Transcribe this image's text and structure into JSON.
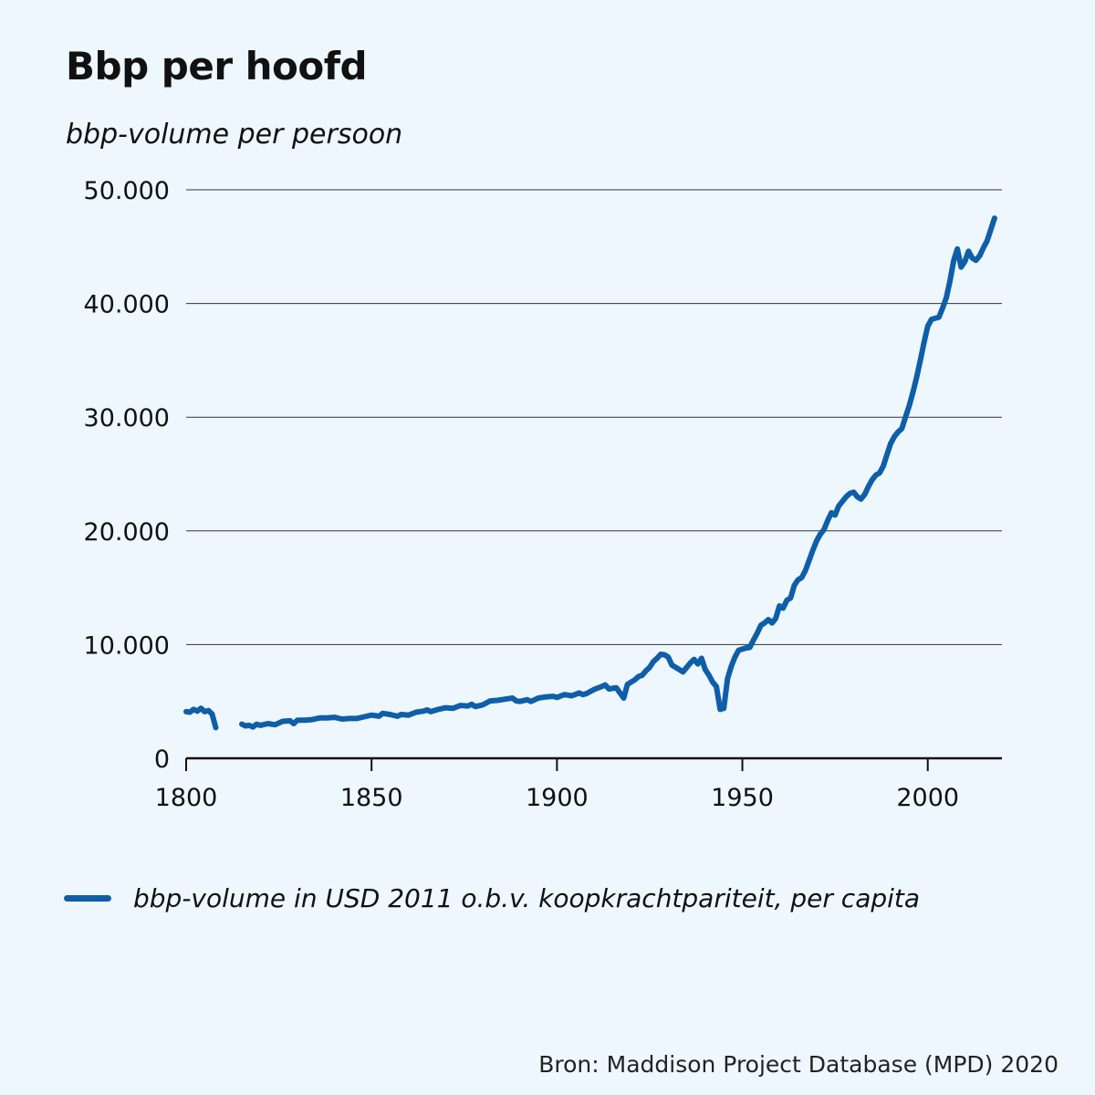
{
  "chart_data": {
    "type": "line",
    "title": "Bbp per hoofd",
    "ylabel": "bbp-volume per persoon",
    "xlim": [
      1800,
      2020
    ],
    "ylim": [
      0,
      50000
    ],
    "x_ticks": [
      1800,
      1850,
      1900,
      1950,
      2000
    ],
    "x_tick_labels": [
      "1800",
      "1850",
      "1900",
      "1950",
      "2000"
    ],
    "y_ticks": [
      0,
      10000,
      20000,
      30000,
      40000,
      50000
    ],
    "y_tick_labels": [
      "0",
      "10.000",
      "20.000",
      "30.000",
      "40.000",
      "50.000"
    ],
    "grid": "horizontal",
    "legend_position": "bottom",
    "source": "Bron: Maddison Project Database (MPD) 2020",
    "series": [
      {
        "name": "bbp-volume in USD 2011 o.b.v. koopkrachtpariteit, per capita",
        "color": "#0f5ea8",
        "segments": [
          [
            [
              1800,
              4100
            ],
            [
              1801,
              4050
            ],
            [
              1802,
              4300
            ],
            [
              1803,
              4150
            ],
            [
              1804,
              4400
            ],
            [
              1805,
              4100
            ],
            [
              1806,
              4200
            ],
            [
              1807,
              3900
            ],
            [
              1808,
              2700
            ]
          ],
          [
            [
              1815,
              3000
            ],
            [
              1816,
              2850
            ],
            [
              1817,
              2900
            ],
            [
              1818,
              2750
            ],
            [
              1819,
              3000
            ],
            [
              1820,
              2900
            ],
            [
              1822,
              3050
            ],
            [
              1824,
              2950
            ],
            [
              1826,
              3250
            ],
            [
              1828,
              3300
            ],
            [
              1829,
              3050
            ],
            [
              1830,
              3350
            ],
            [
              1832,
              3350
            ],
            [
              1834,
              3400
            ],
            [
              1836,
              3550
            ],
            [
              1838,
              3550
            ],
            [
              1840,
              3600
            ],
            [
              1842,
              3450
            ],
            [
              1844,
              3500
            ],
            [
              1846,
              3500
            ],
            [
              1848,
              3650
            ],
            [
              1850,
              3800
            ],
            [
              1852,
              3700
            ],
            [
              1853,
              3950
            ],
            [
              1855,
              3850
            ],
            [
              1857,
              3700
            ],
            [
              1858,
              3850
            ],
            [
              1860,
              3800
            ],
            [
              1862,
              4050
            ],
            [
              1864,
              4150
            ],
            [
              1865,
              4250
            ],
            [
              1866,
              4100
            ],
            [
              1868,
              4300
            ],
            [
              1870,
              4450
            ],
            [
              1872,
              4400
            ],
            [
              1874,
              4650
            ],
            [
              1876,
              4600
            ],
            [
              1877,
              4750
            ],
            [
              1878,
              4550
            ],
            [
              1880,
              4700
            ],
            [
              1882,
              5050
            ],
            [
              1884,
              5100
            ],
            [
              1886,
              5200
            ],
            [
              1888,
              5300
            ],
            [
              1889,
              5050
            ],
            [
              1890,
              5000
            ],
            [
              1892,
              5150
            ],
            [
              1893,
              5000
            ],
            [
              1895,
              5300
            ],
            [
              1897,
              5400
            ],
            [
              1899,
              5450
            ],
            [
              1900,
              5350
            ],
            [
              1902,
              5600
            ],
            [
              1904,
              5500
            ],
            [
              1906,
              5750
            ],
            [
              1907,
              5600
            ],
            [
              1908,
              5700
            ],
            [
              1910,
              6050
            ],
            [
              1912,
              6300
            ],
            [
              1913,
              6450
            ],
            [
              1914,
              6100
            ],
            [
              1916,
              6200
            ],
            [
              1918,
              5300
            ],
            [
              1919,
              6500
            ],
            [
              1920,
              6700
            ],
            [
              1921,
              6900
            ],
            [
              1922,
              7200
            ],
            [
              1923,
              7300
            ],
            [
              1924,
              7700
            ],
            [
              1925,
              8000
            ],
            [
              1926,
              8500
            ],
            [
              1927,
              8800
            ],
            [
              1928,
              9150
            ],
            [
              1929,
              9100
            ],
            [
              1930,
              8900
            ],
            [
              1931,
              8200
            ],
            [
              1932,
              8000
            ],
            [
              1933,
              7800
            ],
            [
              1934,
              7600
            ],
            [
              1935,
              8000
            ],
            [
              1936,
              8400
            ],
            [
              1937,
              8700
            ],
            [
              1938,
              8300
            ],
            [
              1939,
              8800
            ],
            [
              1940,
              7800
            ],
            [
              1941,
              7300
            ],
            [
              1942,
              6700
            ],
            [
              1943,
              6300
            ],
            [
              1944,
              4300
            ],
            [
              1945,
              4400
            ],
            [
              1946,
              7000
            ],
            [
              1947,
              8100
            ],
            [
              1948,
              8900
            ],
            [
              1949,
              9500
            ],
            [
              1950,
              9600
            ],
            [
              1951,
              9700
            ],
            [
              1952,
              9750
            ],
            [
              1953,
              10400
            ],
            [
              1954,
              11000
            ],
            [
              1955,
              11700
            ],
            [
              1956,
              11900
            ],
            [
              1957,
              12200
            ],
            [
              1958,
              11900
            ],
            [
              1959,
              12300
            ],
            [
              1960,
              13400
            ],
            [
              1961,
              13200
            ],
            [
              1962,
              13900
            ],
            [
              1963,
              14100
            ],
            [
              1964,
              15200
            ],
            [
              1965,
              15700
            ],
            [
              1966,
              15900
            ],
            [
              1967,
              16500
            ],
            [
              1968,
              17400
            ],
            [
              1969,
              18300
            ],
            [
              1970,
              19100
            ],
            [
              1971,
              19700
            ],
            [
              1972,
              20100
            ],
            [
              1973,
              20900
            ],
            [
              1974,
              21600
            ],
            [
              1975,
              21400
            ],
            [
              1976,
              22200
            ],
            [
              1977,
              22600
            ],
            [
              1978,
              23000
            ],
            [
              1979,
              23300
            ],
            [
              1980,
              23400
            ],
            [
              1981,
              23000
            ],
            [
              1982,
              22800
            ],
            [
              1983,
              23200
            ],
            [
              1984,
              23900
            ],
            [
              1985,
              24500
            ],
            [
              1986,
              24900
            ],
            [
              1987,
              25100
            ],
            [
              1988,
              25700
            ],
            [
              1989,
              26700
            ],
            [
              1990,
              27700
            ],
            [
              1991,
              28300
            ],
            [
              1992,
              28700
            ],
            [
              1993,
              29000
            ],
            [
              1994,
              30000
            ],
            [
              1995,
              31000
            ],
            [
              1996,
              32200
            ],
            [
              1997,
              33500
            ],
            [
              1998,
              35000
            ],
            [
              1999,
              36600
            ],
            [
              2000,
              38000
            ],
            [
              2001,
              38600
            ],
            [
              2002,
              38700
            ],
            [
              2003,
              38800
            ],
            [
              2004,
              39600
            ],
            [
              2005,
              40500
            ],
            [
              2006,
              42000
            ],
            [
              2007,
              43800
            ],
            [
              2008,
              44800
            ],
            [
              2009,
              43200
            ],
            [
              2010,
              43700
            ],
            [
              2011,
              44600
            ],
            [
              2012,
              44000
            ],
            [
              2013,
              43800
            ],
            [
              2014,
              44200
            ],
            [
              2015,
              44900
            ],
            [
              2016,
              45500
            ],
            [
              2017,
              46500
            ],
            [
              2018,
              47500
            ]
          ]
        ]
      }
    ]
  }
}
